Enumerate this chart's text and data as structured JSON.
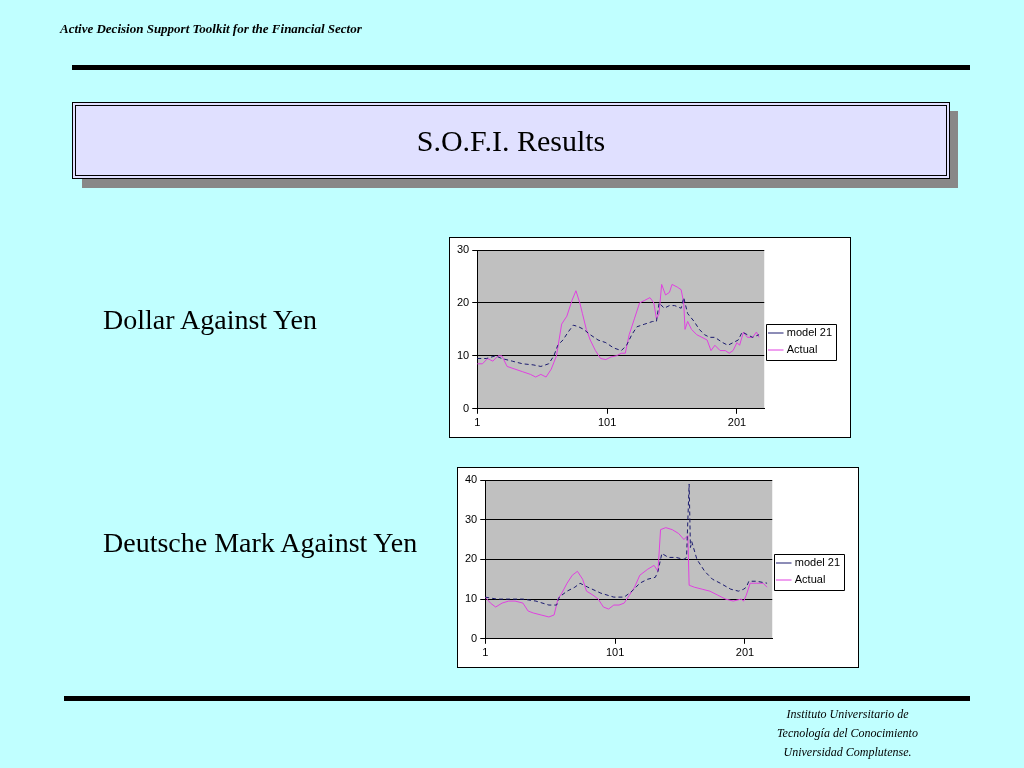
{
  "chart_data": [
    {
      "type": "other",
      "title": "S.O.F.I. Results",
      "annotations": [
        "Active Decision Support Toolkit for the Financial Sector"
      ]
    },
    {
      "type": "line",
      "title": "Dollar Against Yen",
      "xlim": [
        1,
        222
      ],
      "xticks": [
        1,
        101,
        201
      ],
      "ylim": [
        0,
        30
      ],
      "yticks": [
        0,
        10,
        20,
        30
      ],
      "grid": "y",
      "legend": "right",
      "marker": "none",
      "line_style": "solid",
      "series": [
        {
          "name": "model 21",
          "color": "#1a1a6e",
          "line_style": "dashed",
          "x": [
            1,
            8,
            15,
            20,
            28,
            36,
            44,
            50,
            56,
            60,
            63,
            67,
            71,
            75,
            79,
            83,
            88,
            94,
            100,
            106,
            112,
            116,
            120,
            124,
            130,
            136,
            139,
            141,
            145,
            149,
            153,
            158,
            160,
            163,
            168,
            172,
            176,
            180,
            184,
            190,
            194,
            198,
            202,
            205,
            209,
            213,
            218
          ],
          "values": [
            9.5,
            9.5,
            10,
            9.5,
            9,
            8.5,
            8.3,
            8,
            8.5,
            10,
            12,
            13,
            14.5,
            15.8,
            15.5,
            15,
            14,
            13,
            12.5,
            11.5,
            11,
            12,
            14,
            15.5,
            16,
            16.5,
            16.5,
            20,
            19,
            19.5,
            19.5,
            19,
            21,
            18,
            16.5,
            15,
            14,
            13.5,
            13.5,
            12.5,
            12,
            12.5,
            13,
            14.5,
            14,
            13.5,
            14
          ]
        },
        {
          "name": "Actual",
          "color": "#e040e0",
          "x": [
            1,
            5,
            9,
            13,
            17,
            20,
            24,
            30,
            36,
            42,
            46,
            50,
            54,
            58,
            62,
            66,
            70,
            74,
            77,
            80,
            82,
            85,
            88,
            92,
            96,
            100,
            104,
            108,
            112,
            115,
            118,
            122,
            126,
            130,
            134,
            137,
            139,
            141,
            143,
            146,
            149,
            151,
            155,
            158,
            160,
            161,
            163,
            166,
            170,
            174,
            178,
            181,
            184,
            188,
            192,
            195,
            198,
            201,
            203,
            206,
            209,
            213,
            216,
            218
          ],
          "values": [
            8.5,
            8.5,
            9.5,
            9,
            10,
            10,
            8,
            7.5,
            7,
            6.5,
            6,
            6.5,
            6,
            7.5,
            10,
            16,
            17.5,
            20.5,
            22.3,
            20,
            18,
            15,
            13,
            11,
            9.5,
            9.3,
            9.8,
            10,
            10.5,
            10.5,
            14,
            17,
            20,
            20.5,
            21,
            20,
            17,
            18,
            23.5,
            21.5,
            22,
            23.5,
            23,
            22.5,
            20,
            15,
            16.5,
            15,
            14,
            13.5,
            13,
            11,
            12,
            11,
            11,
            10.5,
            11,
            12.5,
            12,
            14.5,
            13.5,
            13.5,
            14.5,
            13.5
          ]
        }
      ]
    },
    {
      "type": "line",
      "title": "Deutsche Mark Against Yen",
      "annotations": [
        "Instituto  Universitario de\nTecnología del  Conocimiento\nUniversidad Complutense."
      ],
      "xlim": [
        1,
        222
      ],
      "xticks": [
        1,
        101,
        201
      ],
      "ylim": [
        0,
        40
      ],
      "yticks": [
        0,
        10,
        20,
        30,
        40
      ],
      "grid": "y",
      "legend": "right",
      "marker": "none",
      "line_style": "solid",
      "series": [
        {
          "name": "model 21",
          "color": "#1a1a6e",
          "line_style": "dashed",
          "x": [
            1,
            10,
            20,
            30,
            40,
            50,
            56,
            58,
            64,
            70,
            74,
            80,
            90,
            100,
            108,
            114,
            120,
            126,
            132,
            134,
            137,
            142,
            148,
            154,
            156,
            158,
            159,
            160,
            164,
            170,
            176,
            182,
            190,
            196,
            200,
            202,
            204,
            210,
            218
          ],
          "values": [
            10.5,
            10,
            10,
            10,
            9.5,
            8.5,
            8.5,
            10.5,
            12,
            13,
            14,
            13,
            11.5,
            10.5,
            10.5,
            12,
            14,
            15,
            15.5,
            17,
            21.5,
            20.5,
            20.5,
            20,
            20.5,
            39,
            23,
            24.5,
            20,
            17,
            15,
            14,
            12.5,
            12,
            12.5,
            13,
            14.5,
            14.5,
            14
          ]
        },
        {
          "name": "Actual",
          "color": "#e040e0",
          "x": [
            1,
            5,
            9,
            14,
            19,
            24,
            30,
            34,
            38,
            44,
            50,
            54,
            57,
            60,
            64,
            68,
            72,
            76,
            79,
            84,
            88,
            92,
            96,
            100,
            104,
            108,
            112,
            116,
            120,
            126,
            131,
            134,
            136,
            140,
            145,
            150,
            154,
            157,
            158,
            162,
            168,
            174,
            180,
            186,
            192,
            198,
            200,
            202,
            205,
            210,
            215,
            218
          ],
          "values": [
            10.5,
            9,
            8,
            9,
            9.5,
            9.5,
            9,
            7,
            6.5,
            6,
            5.5,
            6,
            10,
            11.5,
            14,
            16,
            17,
            15,
            12,
            11,
            10,
            8,
            7.5,
            8.5,
            8.5,
            9,
            11,
            13,
            16,
            17.5,
            18.5,
            17,
            27.5,
            28,
            27.5,
            26.5,
            25,
            26,
            13.5,
            13,
            12.5,
            12,
            11,
            10,
            9.5,
            10,
            9.5,
            11,
            14,
            14,
            14,
            13
          ]
        }
      ]
    }
  ]
}
